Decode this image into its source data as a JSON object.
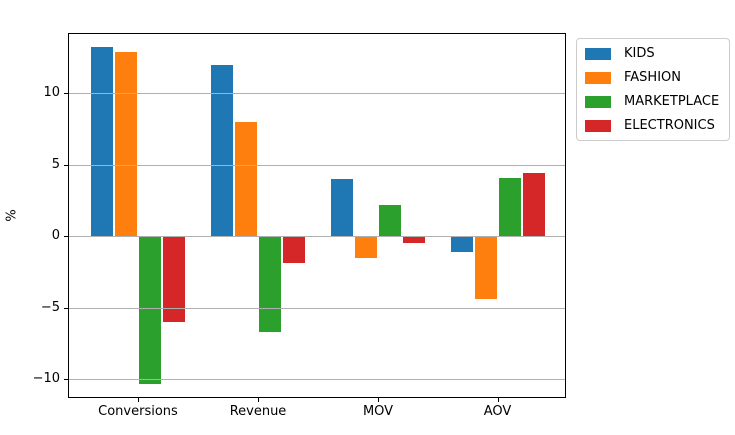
{
  "figure": {
    "background": "#ffffff"
  },
  "chart_data": {
    "type": "bar",
    "title": "",
    "xlabel": "",
    "ylabel": "%",
    "categories": [
      "Conversions",
      "Revenue",
      "MOV",
      "AOV"
    ],
    "series": [
      {
        "name": "KIDS",
        "color": "#1f77b4",
        "values": [
          13.2,
          12.0,
          4.0,
          -1.1
        ]
      },
      {
        "name": "FASHION",
        "color": "#ff7f0e",
        "values": [
          12.9,
          8.0,
          -1.5,
          -4.4
        ]
      },
      {
        "name": "MARKETPLACE",
        "color": "#2ca02c",
        "values": [
          -10.3,
          -6.7,
          2.2,
          4.1
        ]
      },
      {
        "name": "ELECTRONICS",
        "color": "#d62728",
        "values": [
          -6.0,
          -1.9,
          -0.5,
          4.4
        ]
      }
    ],
    "yticks": [
      -10,
      -5,
      0,
      5,
      10
    ],
    "ytick_labels": [
      "−10",
      "−5",
      "0",
      "5",
      "10"
    ],
    "ylim": [
      -11.3,
      14.2
    ],
    "grid": true,
    "grid_color": "#b0b0b0",
    "axis_color": "#000000",
    "legend": {
      "position": "outside-upper-right",
      "entries": [
        "KIDS",
        "FASHION",
        "MARKETPLACE",
        "ELECTRONICS"
      ]
    }
  }
}
